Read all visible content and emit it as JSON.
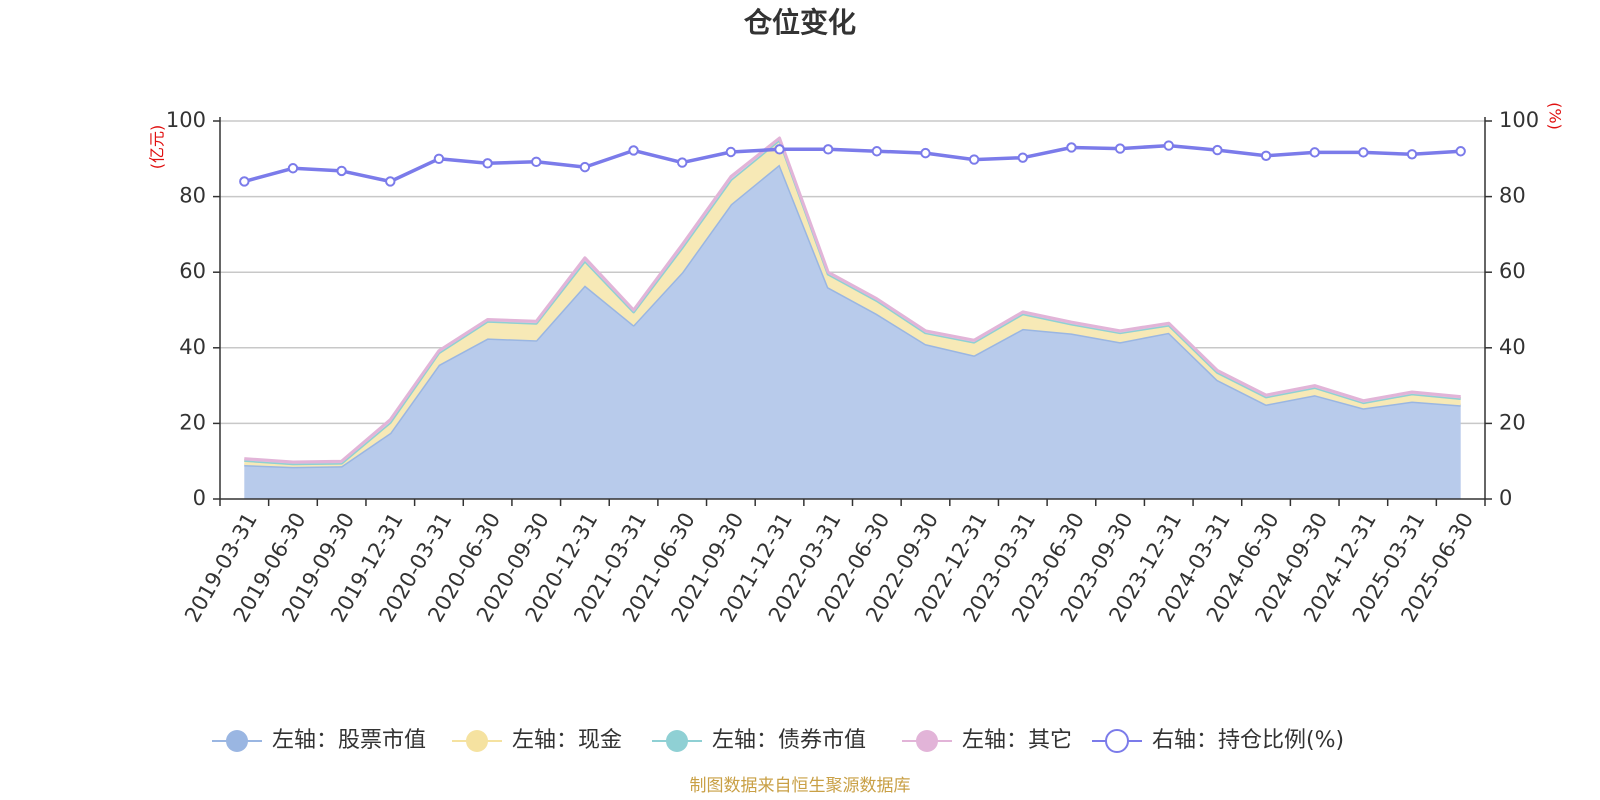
{
  "chart_data": {
    "type": "area",
    "title": "仓位变化",
    "left_unit": "(亿元)",
    "right_unit": "(%)",
    "source": "制图数据来自恒生聚源数据库",
    "categories": [
      "2019-03-31",
      "2019-06-30",
      "2019-09-30",
      "2019-12-31",
      "2020-03-31",
      "2020-06-30",
      "2020-09-30",
      "2020-12-31",
      "2021-03-31",
      "2021-06-30",
      "2021-09-30",
      "2021-12-31",
      "2022-03-31",
      "2022-06-30",
      "2022-09-30",
      "2022-12-31",
      "2023-03-31",
      "2023-06-30",
      "2023-09-30",
      "2023-12-31",
      "2024-03-31",
      "2024-06-30",
      "2024-09-30",
      "2024-12-31",
      "2025-03-31",
      "2025-06-30"
    ],
    "left_axis": {
      "min": 0,
      "max": 100,
      "ticks": [
        "0",
        "20",
        "40",
        "60",
        "80",
        "100"
      ]
    },
    "right_axis": {
      "min": 0,
      "max": 100,
      "ticks": [
        "0",
        "20",
        "40",
        "60",
        "80",
        "100"
      ]
    },
    "grid": true,
    "legend_position": "bottom",
    "series": [
      {
        "name": "左轴：股票市值",
        "axis": "left",
        "color": "#9ab6e2",
        "fill": "#b8cbeb",
        "values": [
          9.0,
          8.5,
          8.7,
          17.5,
          35.5,
          42.5,
          42.0,
          56.5,
          46.0,
          60.0,
          78.0,
          88.5,
          56.0,
          49.0,
          41.0,
          38.0,
          45.0,
          43.8,
          41.5,
          44.0,
          31.5,
          25.0,
          27.5,
          24.0,
          25.8,
          24.8
        ]
      },
      {
        "name": "左轴：现金",
        "axis": "left",
        "color": "#f5e2a0",
        "fill": "#f7e9b6",
        "values": [
          1.2,
          0.8,
          0.8,
          2.8,
          3.2,
          4.5,
          4.5,
          6.5,
          3.5,
          6.5,
          6.5,
          6.5,
          3.5,
          3.5,
          3.0,
          3.5,
          4.0,
          2.5,
          2.5,
          2.0,
          2.0,
          2.0,
          2.0,
          1.5,
          2.0,
          1.8
        ]
      },
      {
        "name": "左轴：债券市值",
        "axis": "left",
        "color": "#8fd0d4",
        "fill": "#a8dde0",
        "values": [
          0,
          0,
          0,
          0,
          0,
          0,
          0,
          0,
          0,
          0,
          0,
          0,
          0,
          0,
          0,
          0,
          0,
          0,
          0,
          0,
          0,
          0,
          0,
          0,
          0,
          0
        ]
      },
      {
        "name": "左轴：其它",
        "axis": "left",
        "color": "#e2b4d8",
        "fill": "#e8c2df",
        "values": [
          0.5,
          0.5,
          0.5,
          0.7,
          0.5,
          0.5,
          0.5,
          0.8,
          0.5,
          0.8,
          0.8,
          0.5,
          0.5,
          0.5,
          0.5,
          0.5,
          0.5,
          0.5,
          0.5,
          0.5,
          0.5,
          0.5,
          0.5,
          0.5,
          0.5,
          0.5
        ]
      },
      {
        "name": "右轴：持仓比例(%)",
        "axis": "right",
        "color": "#7b7bea",
        "fill": "none",
        "values": [
          84.0,
          87.5,
          86.8,
          84.0,
          90.0,
          88.8,
          89.2,
          87.8,
          92.2,
          89.0,
          91.8,
          92.5,
          92.5,
          92.0,
          91.5,
          89.8,
          90.3,
          93.0,
          92.7,
          93.5,
          92.3,
          90.8,
          91.7,
          91.7,
          91.2,
          92.0
        ]
      }
    ]
  }
}
